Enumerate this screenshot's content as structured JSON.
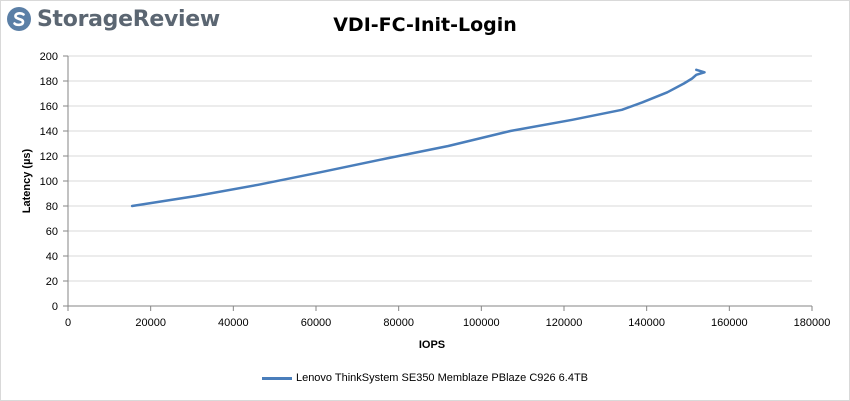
{
  "brand": {
    "name": "StorageReview"
  },
  "chart_data": {
    "type": "line",
    "title": "VDI-FC-Init-Login",
    "xlabel": "IOPS",
    "ylabel": "Latency (µs)",
    "xlim": [
      0,
      180000
    ],
    "ylim": [
      0,
      200
    ],
    "xticks": [
      0,
      20000,
      40000,
      60000,
      80000,
      100000,
      120000,
      140000,
      160000,
      180000
    ],
    "yticks": [
      0,
      20,
      40,
      60,
      80,
      100,
      120,
      140,
      160,
      180,
      200
    ],
    "grid": "horizontal",
    "legend_position": "bottom",
    "series": [
      {
        "name": "Lenovo ThinkSystem SE350 Memblaze PBlaze C926 6.4TB",
        "color": "#4a7ebb",
        "x": [
          15500,
          31000,
          46000,
          61000,
          77000,
          92000,
          107000,
          122000,
          134000,
          139000,
          145000,
          149000,
          151000,
          152000,
          154000,
          152000
        ],
        "y": [
          80,
          88,
          97,
          107,
          118,
          128,
          140,
          149,
          157,
          163,
          171,
          178,
          182,
          185,
          187,
          189
        ]
      }
    ]
  }
}
